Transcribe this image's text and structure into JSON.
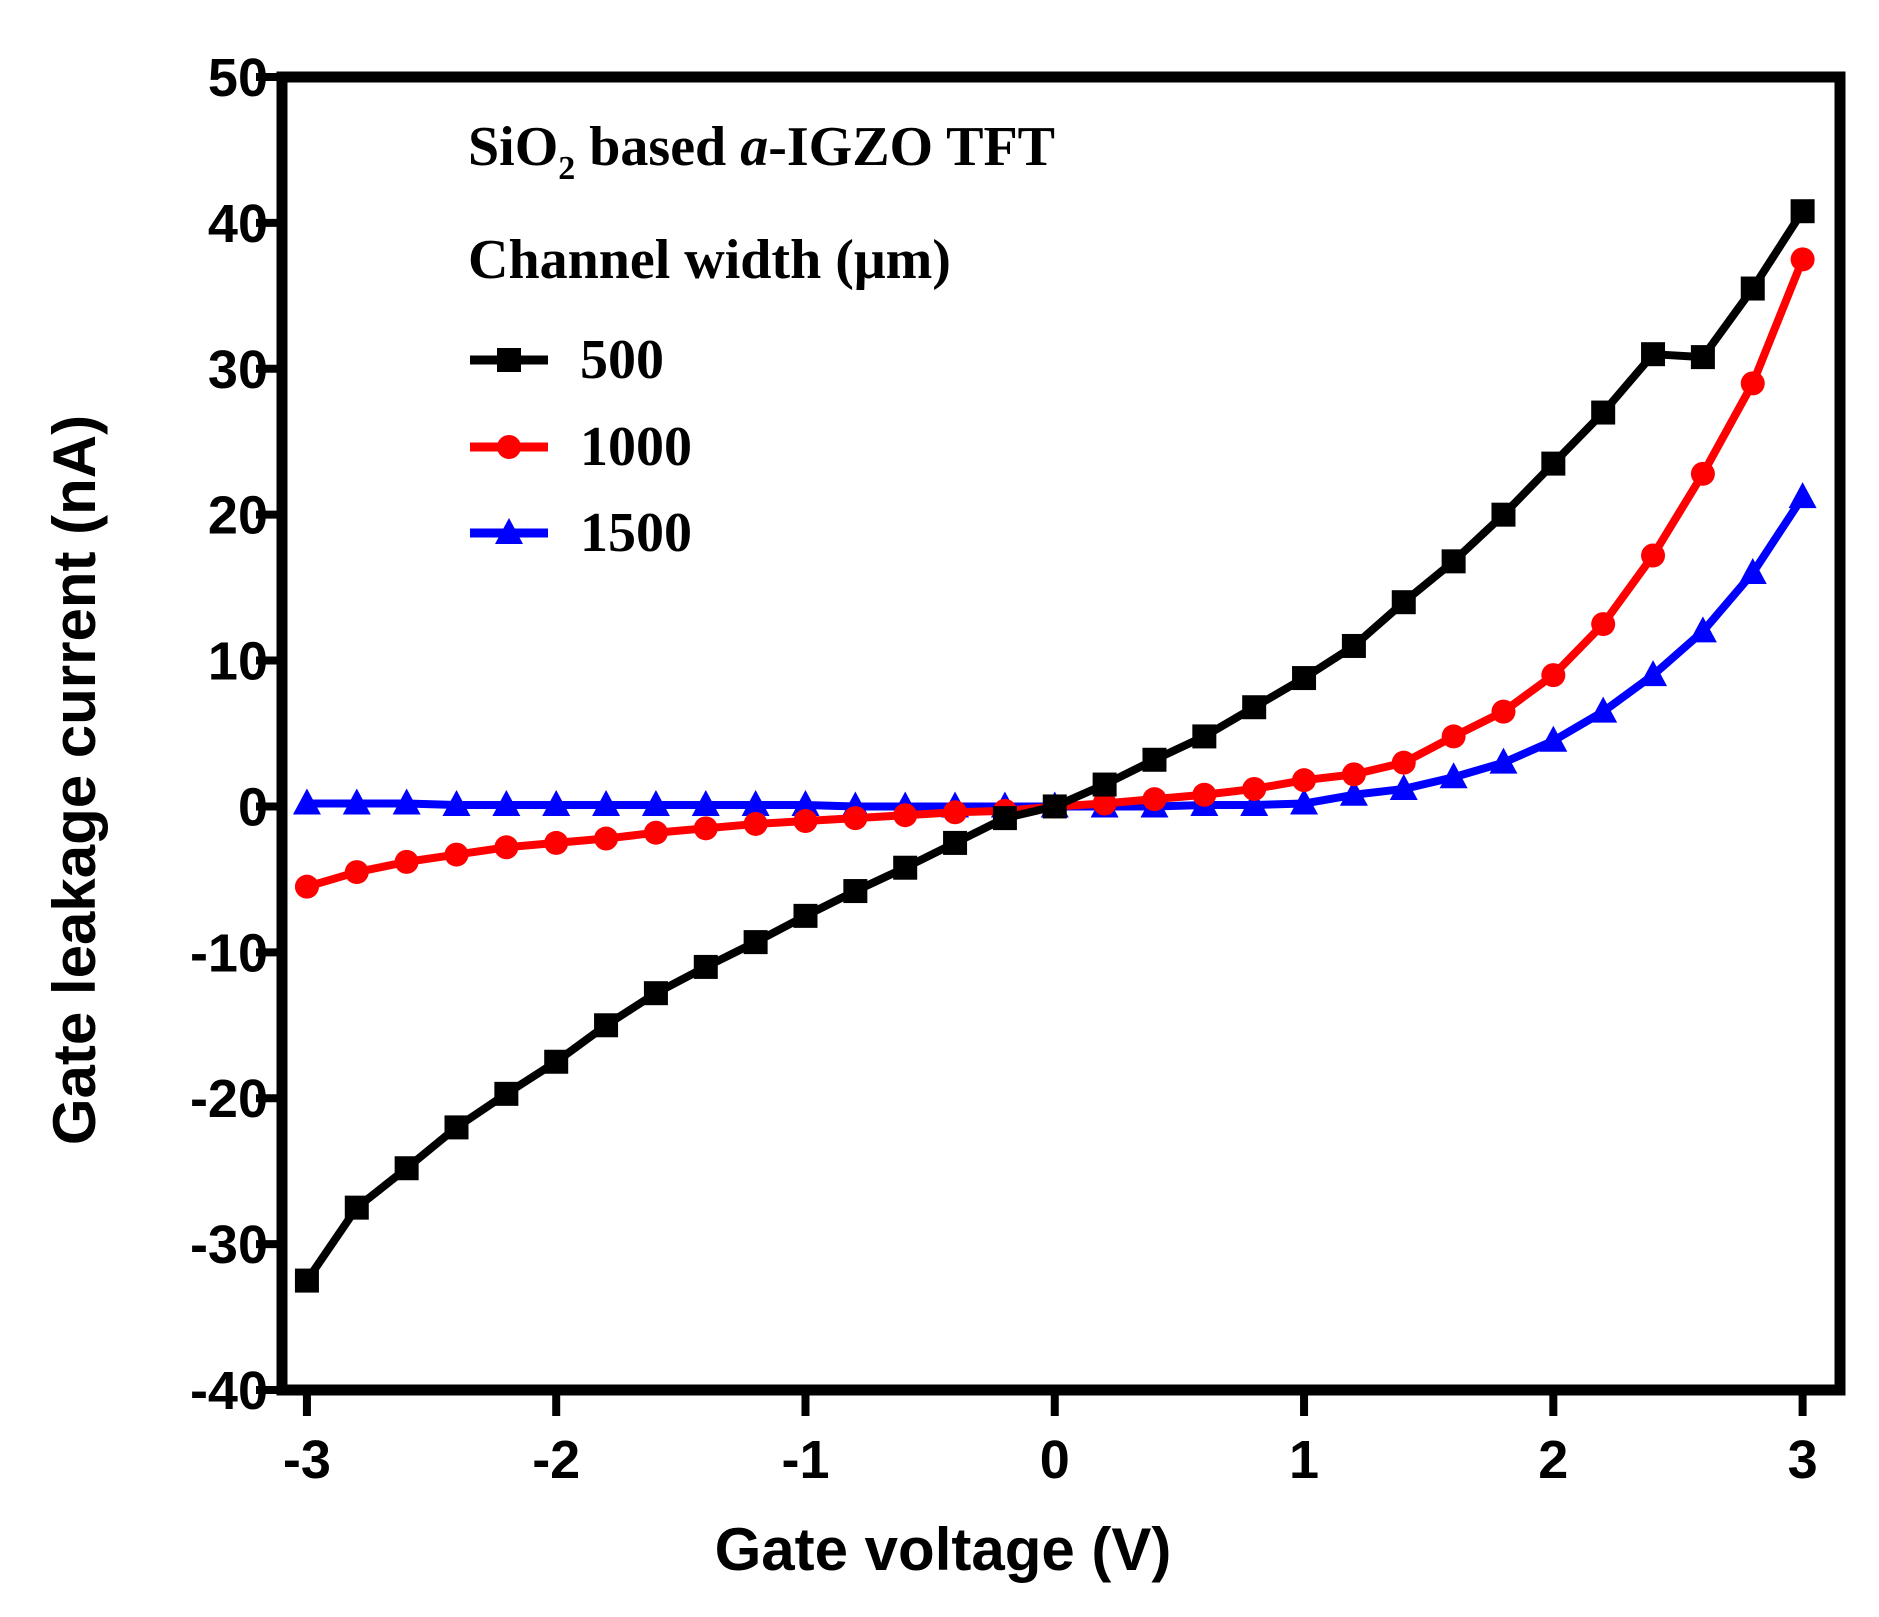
{
  "chart_data": {
    "type": "line",
    "title": "",
    "xlabel": "Gate voltage (V)",
    "ylabel": "Gate leakage current (nA)",
    "xlim": [
      -3.1,
      3.15
    ],
    "ylim": [
      -40,
      50
    ],
    "xticks": [
      -3,
      -2,
      -1,
      0,
      1,
      2,
      3
    ],
    "yticks": [
      -40,
      -30,
      -20,
      -10,
      0,
      10,
      20,
      30,
      40,
      50
    ],
    "xtick_labels": [
      "-3",
      "-2",
      "-1",
      "0",
      "1",
      "2",
      "3"
    ],
    "ytick_labels": [
      "-40",
      "-30",
      "-20",
      "-10",
      "0",
      "10",
      "20",
      "30",
      "40",
      "50"
    ],
    "grid": false,
    "annotation": {
      "line1_prefix": "SiO",
      "line1_sub": "2",
      "line1_mid": " based ",
      "line1_italic": "a",
      "line1_suffix": "-IGZO TFT",
      "line2": "Channel width (μm)"
    },
    "legend_position": "top-left",
    "x": [
      -3.0,
      -2.8,
      -2.6,
      -2.4,
      -2.2,
      -2.0,
      -1.8,
      -1.6,
      -1.4,
      -1.2,
      -1.0,
      -0.8,
      -0.6,
      -0.4,
      -0.2,
      0.0,
      0.2,
      0.4,
      0.6,
      0.8,
      1.0,
      1.2,
      1.4,
      1.6,
      1.8,
      2.0,
      2.2,
      2.4,
      2.6,
      2.8,
      3.0
    ],
    "series": [
      {
        "name": "500",
        "color": "#000000",
        "marker": "square",
        "values": [
          -32.5,
          -27.5,
          -24.8,
          -22.0,
          -19.7,
          -17.5,
          -15.0,
          -12.8,
          -11.0,
          -9.3,
          -7.5,
          -5.8,
          -4.2,
          -2.5,
          -0.8,
          0.0,
          1.5,
          3.2,
          4.8,
          6.8,
          8.8,
          11.0,
          14.0,
          16.8,
          20.0,
          23.5,
          27.0,
          31.0,
          30.8,
          35.5,
          40.8
        ]
      },
      {
        "name": "1000",
        "color": "#ff0000",
        "marker": "circle",
        "values": [
          -5.5,
          -4.5,
          -3.8,
          -3.3,
          -2.8,
          -2.5,
          -2.2,
          -1.8,
          -1.5,
          -1.2,
          -1.0,
          -0.8,
          -0.6,
          -0.4,
          -0.3,
          0.0,
          0.2,
          0.5,
          0.8,
          1.2,
          1.8,
          2.2,
          3.0,
          4.8,
          6.5,
          9.0,
          12.5,
          17.2,
          22.8,
          29.0,
          37.5
        ]
      },
      {
        "name": "1500",
        "color": "#0000ff",
        "marker": "triangle",
        "values": [
          0.2,
          0.2,
          0.2,
          0.1,
          0.1,
          0.1,
          0.1,
          0.1,
          0.1,
          0.1,
          0.1,
          0.0,
          0.0,
          0.0,
          0.0,
          0.0,
          0.0,
          0.0,
          0.1,
          0.1,
          0.2,
          0.8,
          1.2,
          2.0,
          3.0,
          4.5,
          6.5,
          9.0,
          12.0,
          16.0,
          21.2
        ]
      }
    ]
  }
}
